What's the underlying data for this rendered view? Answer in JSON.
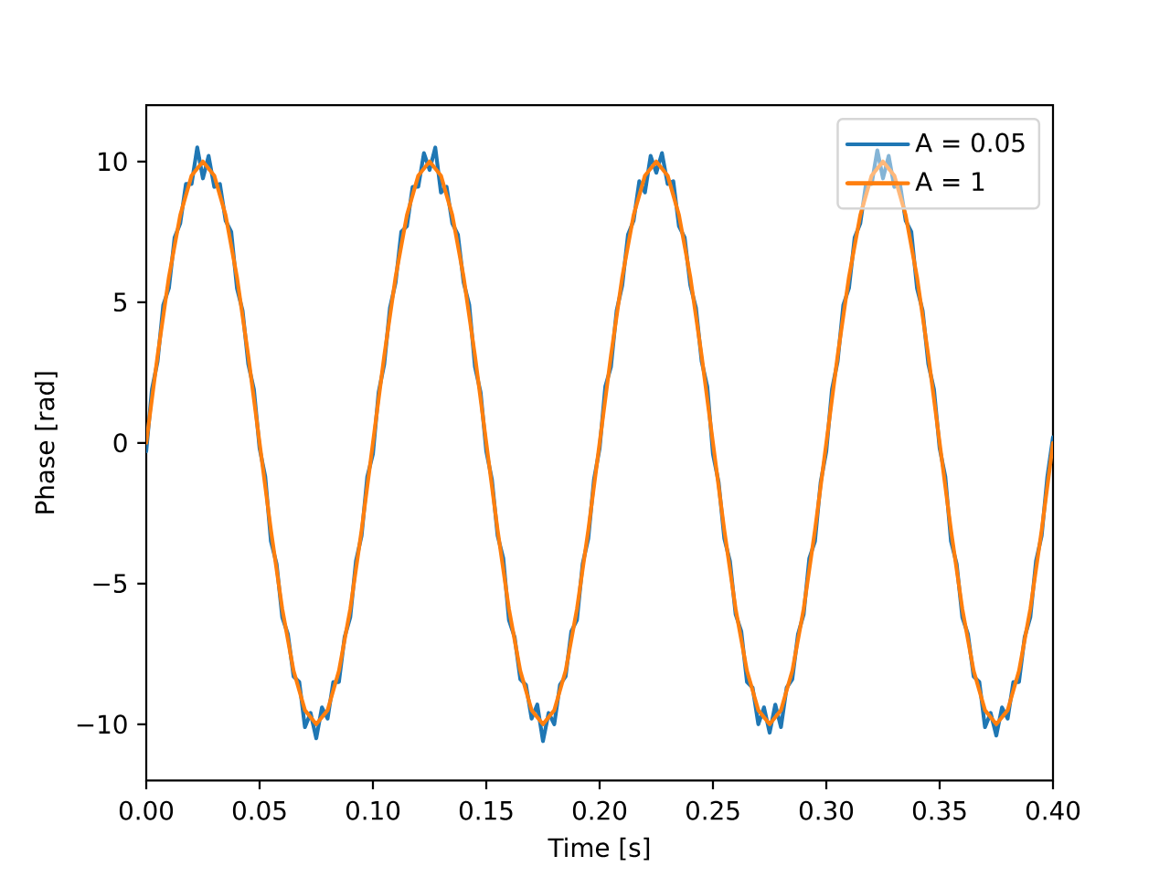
{
  "chart_data": {
    "type": "line",
    "xlabel": "Time [s]",
    "ylabel": "Phase [rad]",
    "xlim": [
      0,
      0.4
    ],
    "ylim": [
      -12,
      12
    ],
    "xticks": [
      {
        "value": 0,
        "label": "0.00"
      },
      {
        "value": 0.05,
        "label": "0.05"
      },
      {
        "value": 0.1,
        "label": "0.10"
      },
      {
        "value": 0.15,
        "label": "0.15"
      },
      {
        "value": 0.2,
        "label": "0.20"
      },
      {
        "value": 0.25,
        "label": "0.25"
      },
      {
        "value": 0.3,
        "label": "0.30"
      },
      {
        "value": 0.35,
        "label": "0.35"
      },
      {
        "value": 0.4,
        "label": "0.40"
      }
    ],
    "yticks": [
      {
        "value": -10,
        "label": "−10"
      },
      {
        "value": -5,
        "label": "−5"
      },
      0,
      5,
      10
    ],
    "legend": "top right",
    "line_style": "solid",
    "series": [
      {
        "name": "A = 0.05",
        "color": "#1f77b4",
        "x": [
          0,
          0.0025,
          0.005,
          0.0075,
          0.01,
          0.0125,
          0.015,
          0.0175,
          0.02,
          0.0225,
          0.025,
          0.0275,
          0.03,
          0.0325,
          0.035,
          0.0375,
          0.04,
          0.0425,
          0.045,
          0.0475,
          0.05,
          0.0525,
          0.055,
          0.0575,
          0.06,
          0.0625,
          0.065,
          0.0675,
          0.07,
          0.0725,
          0.075,
          0.0775,
          0.08,
          0.0825,
          0.085,
          0.0875,
          0.09,
          0.0925,
          0.095,
          0.0975,
          0.1,
          0.1025,
          0.105,
          0.1075,
          0.11,
          0.1125,
          0.115,
          0.1175,
          0.12,
          0.1225,
          0.125,
          0.1275,
          0.13,
          0.1325,
          0.135,
          0.1375,
          0.14,
          0.1425,
          0.145,
          0.1475,
          0.15,
          0.1525,
          0.155,
          0.1575,
          0.16,
          0.1625,
          0.165,
          0.1675,
          0.17,
          0.1725,
          0.175,
          0.1775,
          0.18,
          0.1825,
          0.185,
          0.1875,
          0.19,
          0.1925,
          0.195,
          0.1975,
          0.2,
          0.2025,
          0.205,
          0.2075,
          0.21,
          0.2125,
          0.215,
          0.2175,
          0.22,
          0.2225,
          0.225,
          0.2275,
          0.23,
          0.2325,
          0.235,
          0.2375,
          0.24,
          0.2425,
          0.245,
          0.2475,
          0.25,
          0.2525,
          0.255,
          0.2575,
          0.26,
          0.2625,
          0.265,
          0.2675,
          0.27,
          0.2725,
          0.275,
          0.2775,
          0.28,
          0.2825,
          0.285,
          0.2875,
          0.29,
          0.2925,
          0.295,
          0.2975,
          0.3,
          0.3025,
          0.305,
          0.3075,
          0.31,
          0.3125,
          0.315,
          0.3175,
          0.32,
          0.3225,
          0.325,
          0.3275,
          0.33,
          0.3325,
          0.335,
          0.3375,
          0.34,
          0.3425,
          0.345,
          0.3475,
          0.35,
          0.3525,
          0.355,
          0.3575,
          0.36,
          0.3625,
          0.365,
          0.3675,
          0.37,
          0.3725,
          0.375,
          0.3775,
          0.38,
          0.3825,
          0.385,
          0.3875,
          0.39,
          0.3925,
          0.395,
          0.3975,
          0.4
        ],
        "values": [
          -0.3,
          1.9,
          2.9,
          4.9,
          5.5,
          7.3,
          7.8,
          9.2,
          9.2,
          10.5,
          9.4,
          10.2,
          9.1,
          9.2,
          7.9,
          7.5,
          5.5,
          4.7,
          2.8,
          1.9,
          -0.2,
          -1.2,
          -3.5,
          -4.3,
          -6.2,
          -6.8,
          -8.3,
          -8.5,
          -10.1,
          -9.6,
          -10.5,
          -9.4,
          -9.8,
          -8.5,
          -8.5,
          -6.9,
          -6.2,
          -4.2,
          -3.3,
          -1.2,
          -0.4,
          1.8,
          2.8,
          4.8,
          5.7,
          7.5,
          7.7,
          9.1,
          9.1,
          10.3,
          9.7,
          10.5,
          8.9,
          9.1,
          7.8,
          7.4,
          5.7,
          4.9,
          2.7,
          1.8,
          -0.3,
          -1.3,
          -3.3,
          -4.1,
          -6.3,
          -6.9,
          -8.4,
          -8.6,
          -9.8,
          -9.3,
          -10.6,
          -9.6,
          -10.0,
          -8.6,
          -8.3,
          -6.7,
          -6.3,
          -4.3,
          -3.4,
          -1.3,
          -0.2,
          2.0,
          2.7,
          4.7,
          5.6,
          7.4,
          7.9,
          9.3,
          8.9,
          10.2,
          9.6,
          10.3,
          9.2,
          9.3,
          7.7,
          7.3,
          5.6,
          4.8,
          2.9,
          2.0,
          -0.4,
          -1.4,
          -3.4,
          -4.2,
          -6.1,
          -6.7,
          -8.5,
          -8.7,
          -10.0,
          -9.4,
          -10.3,
          -9.3,
          -10.1,
          -8.7,
          -8.4,
          -6.8,
          -6.1,
          -4.1,
          -3.5,
          -1.4,
          -0.3,
          1.9,
          2.9,
          4.9,
          5.5,
          7.3,
          7.8,
          9.2,
          9.2,
          10.4,
          9.4,
          10.2,
          9.1,
          9.2,
          7.9,
          7.5,
          5.5,
          4.7,
          2.8,
          1.9,
          -0.2,
          -1.2,
          -3.5,
          -4.3,
          -6.2,
          -6.8,
          -8.3,
          -8.5,
          -10.1,
          -9.6,
          -10.4,
          -9.4,
          -9.8,
          -8.5,
          -8.5,
          -6.9,
          -6.2,
          -4.2,
          -3.3,
          -1.2,
          0.2
        ]
      },
      {
        "name": "A = 1",
        "color": "#ff7f0e",
        "x": [
          0,
          0.005,
          0.01,
          0.015,
          0.02,
          0.025,
          0.03,
          0.035,
          0.04,
          0.045,
          0.05,
          0.055,
          0.06,
          0.065,
          0.07,
          0.075,
          0.08,
          0.085,
          0.09,
          0.095,
          0.1,
          0.105,
          0.11,
          0.115,
          0.12,
          0.125,
          0.13,
          0.135,
          0.14,
          0.145,
          0.15,
          0.155,
          0.16,
          0.165,
          0.17,
          0.175,
          0.18,
          0.185,
          0.19,
          0.195,
          0.2,
          0.205,
          0.21,
          0.215,
          0.22,
          0.225,
          0.23,
          0.235,
          0.24,
          0.245,
          0.25,
          0.255,
          0.26,
          0.265,
          0.27,
          0.275,
          0.28,
          0.285,
          0.29,
          0.295,
          0.3,
          0.305,
          0.31,
          0.315,
          0.32,
          0.325,
          0.33,
          0.335,
          0.34,
          0.345,
          0.35,
          0.355,
          0.36,
          0.365,
          0.37,
          0.375,
          0.38,
          0.385,
          0.39,
          0.395,
          0.4
        ],
        "values": [
          0,
          3.1,
          5.9,
          8.1,
          9.5,
          10,
          9.5,
          8.1,
          5.9,
          3.1,
          0,
          -3.1,
          -5.9,
          -8.1,
          -9.5,
          -10,
          -9.5,
          -8.1,
          -5.9,
          -3.1,
          0,
          3.1,
          5.9,
          8.1,
          9.5,
          10,
          9.5,
          8.1,
          5.9,
          3.1,
          0,
          -3.1,
          -5.9,
          -8.1,
          -9.5,
          -10,
          -9.5,
          -8.1,
          -5.9,
          -3.1,
          0,
          3.1,
          5.9,
          8.1,
          9.5,
          10,
          9.5,
          8.1,
          5.9,
          3.1,
          0,
          -3.1,
          -5.9,
          -8.1,
          -9.5,
          -10,
          -9.5,
          -8.1,
          -5.9,
          -3.1,
          0,
          3.1,
          5.9,
          8.1,
          9.5,
          10,
          9.5,
          8.1,
          5.9,
          3.1,
          0,
          -3.1,
          -5.9,
          -8.1,
          -9.5,
          -10,
          -9.5,
          -8.1,
          -5.9,
          -3.1,
          0
        ]
      }
    ]
  }
}
